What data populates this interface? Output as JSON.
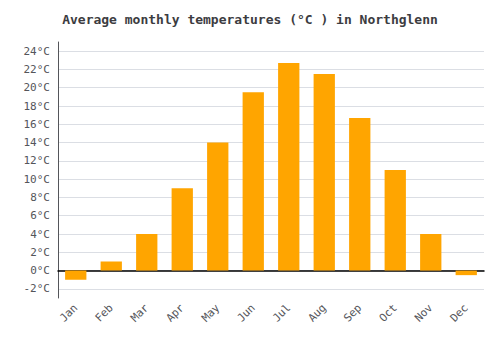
{
  "chart_data": {
    "type": "bar",
    "title": "Average monthly temperatures (°C ) in Northglenn",
    "categories": [
      "Jan",
      "Feb",
      "Mar",
      "Apr",
      "May",
      "Jun",
      "Jul",
      "Aug",
      "Sep",
      "Oct",
      "Nov",
      "Dec"
    ],
    "values": [
      -1.0,
      1.0,
      4.0,
      9.0,
      14.0,
      19.5,
      22.7,
      21.5,
      16.7,
      11.0,
      4.0,
      -0.5
    ],
    "color": "#FFA500",
    "ylim": [
      -3,
      25
    ],
    "yticks": [
      {
        "value": -2,
        "label": "-2°C"
      },
      {
        "value": 0,
        "label": "0°C"
      },
      {
        "value": 2,
        "label": "2°C"
      },
      {
        "value": 4,
        "label": "4°C"
      },
      {
        "value": 6,
        "label": "6°C"
      },
      {
        "value": 8,
        "label": "8°C"
      },
      {
        "value": 10,
        "label": "10°C"
      },
      {
        "value": 12,
        "label": "12°C"
      },
      {
        "value": 14,
        "label": "14°C"
      },
      {
        "value": 16,
        "label": "16°C"
      },
      {
        "value": 18,
        "label": "18°C"
      },
      {
        "value": 20,
        "label": "20°C"
      },
      {
        "value": 22,
        "label": "22°C"
      },
      {
        "value": 24,
        "label": "24°C"
      }
    ],
    "grid": true
  }
}
